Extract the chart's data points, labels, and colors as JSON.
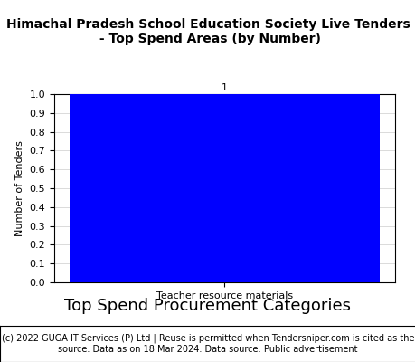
{
  "title": "Himachal Pradesh School Education Society Live Tenders\n - Top Spend Areas (by Number)",
  "categories": [
    "Teacher resource materials"
  ],
  "values": [
    1
  ],
  "bar_color": "#0000ff",
  "ylabel": "Number of Tenders",
  "xlabel_tick": "Teacher resource materials",
  "xlabel_main": "Top Spend Procurement Categories",
  "ylim": [
    0,
    1.0
  ],
  "yticks": [
    0.0,
    0.1,
    0.2,
    0.3,
    0.4,
    0.5,
    0.6,
    0.7,
    0.8,
    0.9,
    1.0
  ],
  "bar_label_color": "black",
  "bar_label_fontsize": 8,
  "footnote": "(c) 2022 GUGA IT Services (P) Ltd | Reuse is permitted when Tendersniper.com is cited as the\nsource. Data as on 18 Mar 2024. Data source: Public advertisement",
  "title_fontsize": 10,
  "xlabel_main_fontsize": 13,
  "ylabel_fontsize": 8,
  "tick_fontsize": 8,
  "footnote_fontsize": 7,
  "bg_color": "#ffffff",
  "grid_color": "#cccccc",
  "bar_width": 0.5
}
